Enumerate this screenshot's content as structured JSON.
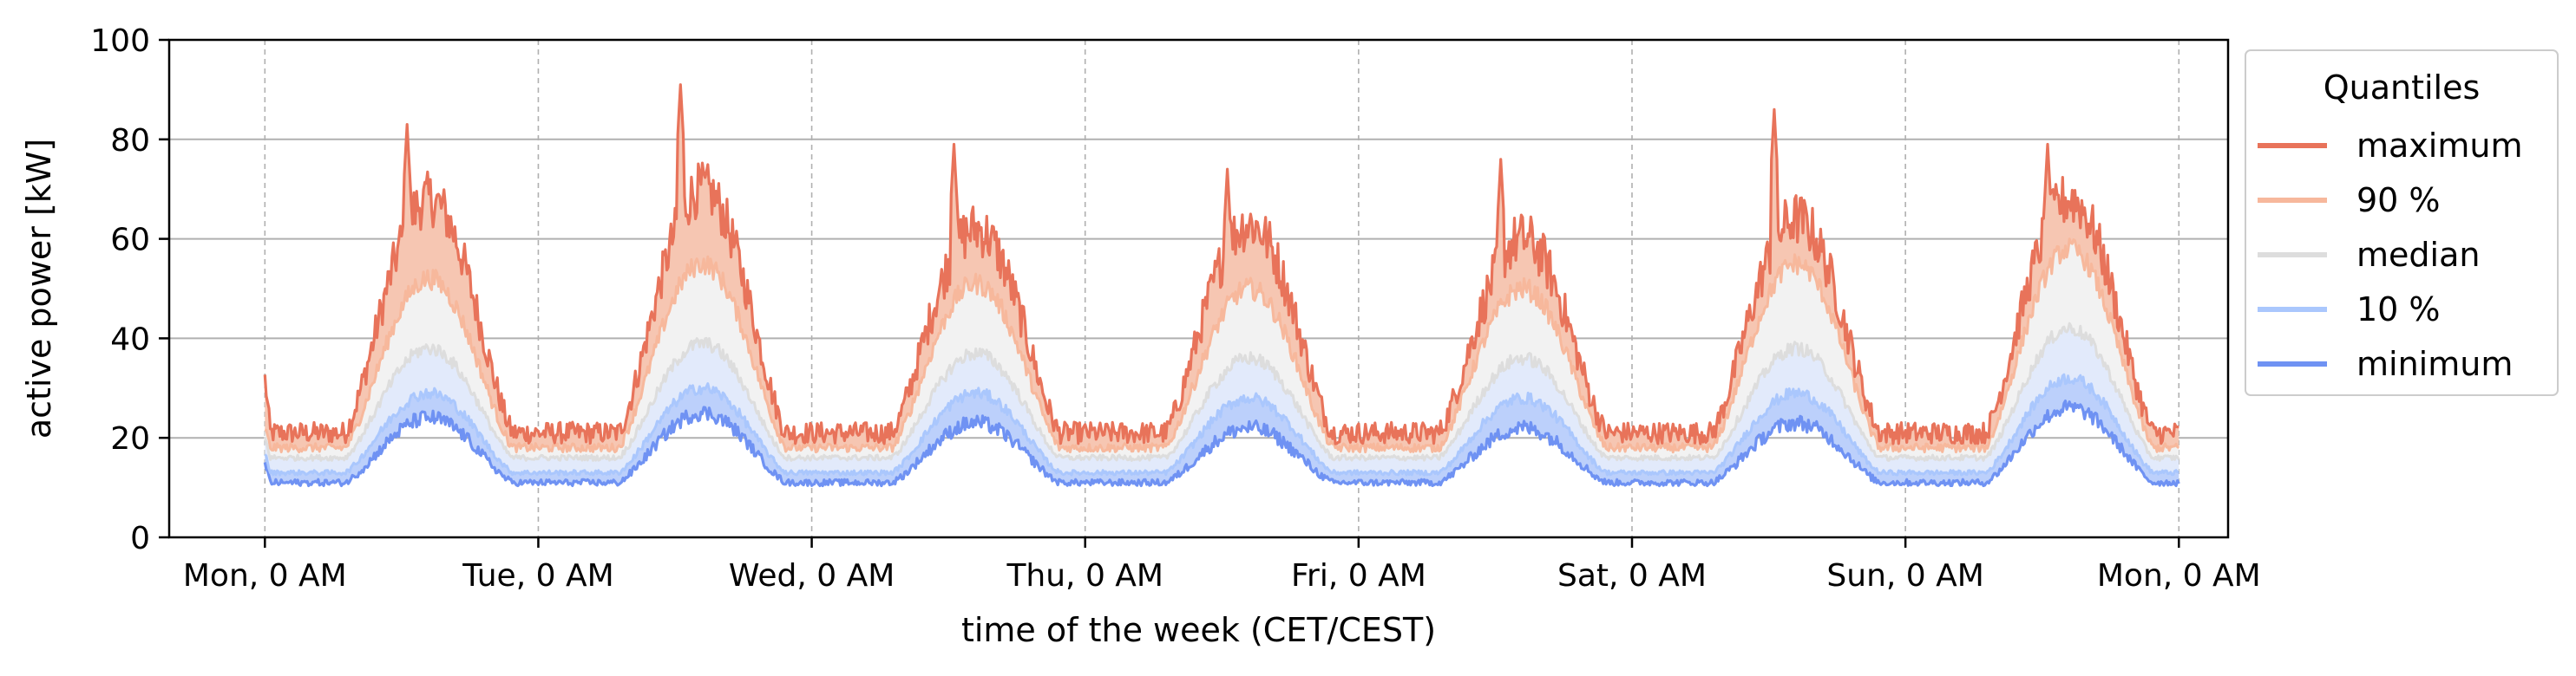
{
  "chart_data": {
    "type": "line",
    "title": "",
    "xlabel": "time of the week (CET/CEST)",
    "ylabel": "active power [kW]",
    "ylim": [
      0,
      100
    ],
    "xlim": [
      -0.35,
      7.18
    ],
    "yticks": [
      0,
      20,
      40,
      60,
      80,
      100
    ],
    "xticks": [
      {
        "pos": 0,
        "label": "Mon, 0 AM"
      },
      {
        "pos": 1,
        "label": "Tue, 0 AM"
      },
      {
        "pos": 2,
        "label": "Wed, 0 AM"
      },
      {
        "pos": 3,
        "label": "Thu, 0 AM"
      },
      {
        "pos": 4,
        "label": "Fri, 0 AM"
      },
      {
        "pos": 5,
        "label": "Sat, 0 AM"
      },
      {
        "pos": 6,
        "label": "Sun, 0 AM"
      },
      {
        "pos": 7,
        "label": "Mon, 0 AM"
      }
    ],
    "grid": {
      "y": "solid",
      "x": "dashed"
    },
    "legend": {
      "title": "Quantiles",
      "placement": "outside-right-top",
      "entries": [
        "maximum",
        "90 %",
        "median",
        "10 %",
        "minimum"
      ]
    },
    "series": [
      {
        "name": "maximum",
        "color": "#e8735a",
        "daily_profile": {
          "night_min": 21,
          "day_peak": [
            68,
            70,
            62,
            63,
            60,
            64,
            68
          ],
          "spikes": [
            83,
            91,
            79,
            74,
            76,
            86,
            79
          ]
        }
      },
      {
        "name": "90 %",
        "color": "#f7b89c",
        "daily_profile": {
          "night_min": 18,
          "day_peak": [
            52,
            55,
            51,
            50,
            50,
            55,
            58
          ]
        }
      },
      {
        "name": "median",
        "color": "#dddddd",
        "daily_profile": {
          "night_min": 16,
          "day_peak": [
            38,
            39,
            37,
            36,
            36,
            38,
            42
          ]
        }
      },
      {
        "name": "10 %",
        "color": "#aac7fd",
        "daily_profile": {
          "night_min": 13,
          "day_peak": [
            29,
            30,
            29,
            28,
            28,
            29,
            32
          ]
        }
      },
      {
        "name": "minimum",
        "color": "#6f92f3",
        "daily_profile": {
          "night_min": 11,
          "day_peak": [
            24,
            25,
            23,
            22,
            22,
            23,
            26
          ]
        }
      }
    ],
    "bands": [
      {
        "between": [
          "maximum",
          "90 %"
        ],
        "color": "#f6c6b2"
      },
      {
        "between": [
          "90 %",
          "median"
        ],
        "color": "#f2f2f2"
      },
      {
        "between": [
          "median",
          "10 %"
        ],
        "color": "#e2eafb"
      },
      {
        "between": [
          "10 %",
          "minimum"
        ],
        "color": "#bcd0fb"
      }
    ]
  }
}
